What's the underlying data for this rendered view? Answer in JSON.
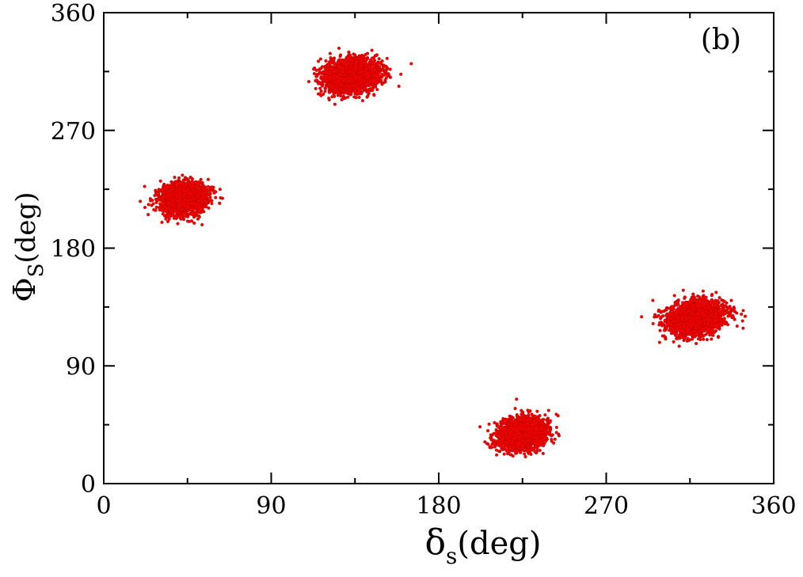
{
  "chart_data": {
    "type": "scatter",
    "panel_label": "(b)",
    "xlabel": {
      "symbol": "δ",
      "subscript": "s",
      "unit": "(deg)"
    },
    "ylabel": {
      "symbol": "Φ",
      "subscript": "S",
      "unit": "(deg)"
    },
    "xlim": [
      0,
      360
    ],
    "ylim": [
      0,
      360
    ],
    "xticks": [
      0,
      90,
      180,
      270,
      360
    ],
    "yticks": [
      0,
      90,
      180,
      270,
      360
    ],
    "grid": false,
    "marker_color": "#ff0000",
    "clusters": [
      {
        "center": [
          43,
          218
        ],
        "spread": [
          11,
          10
        ],
        "tilt_deg": 35,
        "x_range": [
          15,
          68
        ],
        "y_range": [
          187,
          242
        ]
      },
      {
        "center": [
          133,
          312
        ],
        "spread": [
          14,
          11
        ],
        "tilt_deg": 25,
        "x_range": [
          100,
          168
        ],
        "y_range": [
          277,
          338
        ]
      },
      {
        "center": [
          225,
          38
        ],
        "spread": [
          12,
          10
        ],
        "tilt_deg": 35,
        "x_range": [
          197,
          250
        ],
        "y_range": [
          10,
          66
        ]
      },
      {
        "center": [
          318,
          127
        ],
        "spread": [
          14,
          11
        ],
        "tilt_deg": 25,
        "x_range": [
          283,
          348
        ],
        "y_range": [
          100,
          156
        ]
      }
    ]
  }
}
